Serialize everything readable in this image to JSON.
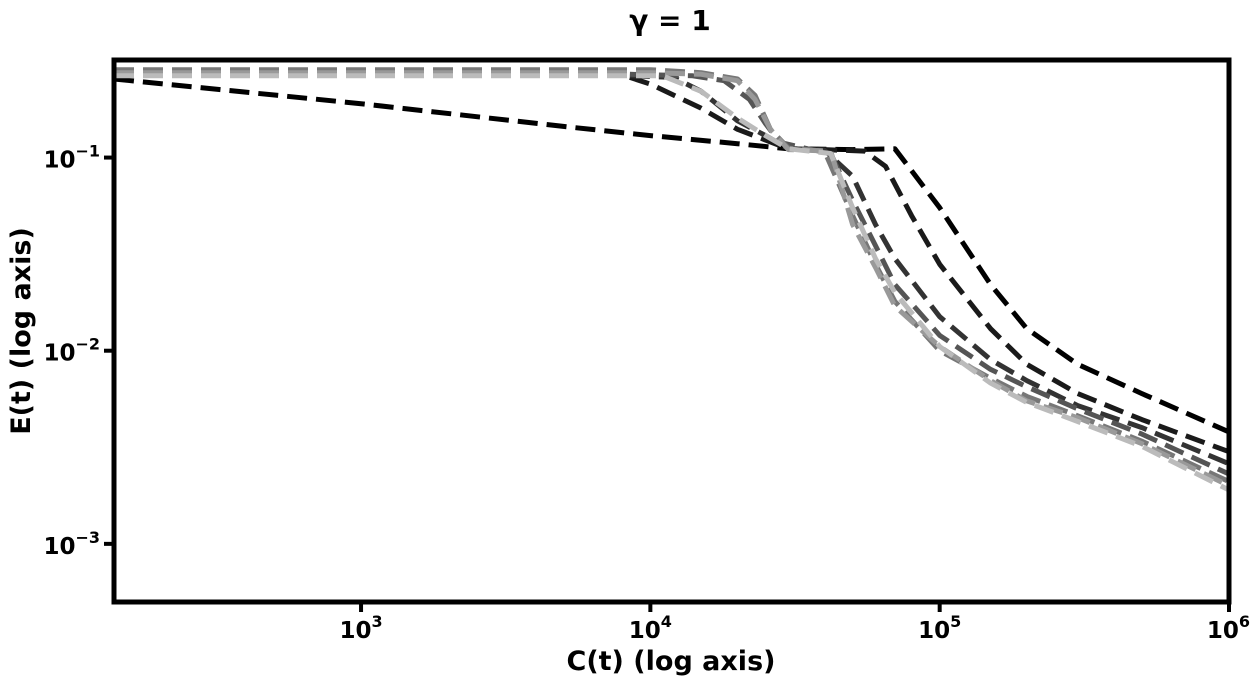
{
  "chart_data": {
    "type": "line",
    "title": "γ = 1",
    "xlabel": "C(t) (log axis)",
    "ylabel": "E(t) (log axis)",
    "xscale": "log",
    "yscale": "log",
    "xlim": [
      140,
      1000000
    ],
    "ylim": [
      0.0005,
      0.32
    ],
    "grid": false,
    "legend": "none",
    "line_style": "dashed",
    "xticks": [
      {
        "base": "10",
        "exp": "3",
        "value": 1000
      },
      {
        "base": "10",
        "exp": "4",
        "value": 10000
      },
      {
        "base": "10",
        "exp": "5",
        "value": 100000
      },
      {
        "base": "10",
        "exp": "6",
        "value": 1000000
      }
    ],
    "yticks": [
      {
        "base": "10",
        "exp": "−1",
        "value": 0.1
      },
      {
        "base": "10",
        "exp": "−2",
        "value": 0.01
      },
      {
        "base": "10",
        "exp": "−3",
        "value": 0.001
      }
    ],
    "series": [
      {
        "color": "#000000",
        "points": [
          [
            140,
            0.255
          ],
          [
            1000,
            0.19
          ],
          [
            5000,
            0.145
          ],
          [
            10000,
            0.13
          ],
          [
            20000,
            0.118
          ],
          [
            30000,
            0.111
          ],
          [
            50000,
            0.11
          ],
          [
            70000,
            0.111
          ],
          [
            100000,
            0.055
          ],
          [
            150000,
            0.022
          ],
          [
            200000,
            0.013
          ],
          [
            300000,
            0.0085
          ],
          [
            500000,
            0.006
          ],
          [
            1000000,
            0.0038
          ]
        ]
      },
      {
        "color": "#1a1a1a",
        "points": [
          [
            8500,
            0.26
          ],
          [
            10000,
            0.24
          ],
          [
            15000,
            0.18
          ],
          [
            20000,
            0.14
          ],
          [
            30000,
            0.111
          ],
          [
            40000,
            0.11
          ],
          [
            55000,
            0.108
          ],
          [
            65000,
            0.09
          ],
          [
            80000,
            0.05
          ],
          [
            100000,
            0.028
          ],
          [
            150000,
            0.013
          ],
          [
            200000,
            0.0085
          ],
          [
            300000,
            0.006
          ],
          [
            500000,
            0.0044
          ],
          [
            1000000,
            0.003
          ]
        ]
      },
      {
        "color": "#333333",
        "points": [
          [
            8500,
            0.265
          ],
          [
            12000,
            0.26
          ],
          [
            15000,
            0.22
          ],
          [
            20000,
            0.155
          ],
          [
            25000,
            0.13
          ],
          [
            30000,
            0.111
          ],
          [
            40000,
            0.109
          ],
          [
            50000,
            0.08
          ],
          [
            60000,
            0.045
          ],
          [
            70000,
            0.03
          ],
          [
            100000,
            0.015
          ],
          [
            150000,
            0.009
          ],
          [
            200000,
            0.007
          ],
          [
            300000,
            0.0052
          ],
          [
            500000,
            0.004
          ],
          [
            1000000,
            0.0026
          ]
        ]
      },
      {
        "color": "#555555",
        "points": [
          [
            8500,
            0.27
          ],
          [
            14000,
            0.265
          ],
          [
            18000,
            0.25
          ],
          [
            22000,
            0.2
          ],
          [
            25000,
            0.15
          ],
          [
            28000,
            0.12
          ],
          [
            35000,
            0.111
          ],
          [
            42000,
            0.105
          ],
          [
            50000,
            0.06
          ],
          [
            60000,
            0.035
          ],
          [
            70000,
            0.022
          ],
          [
            100000,
            0.012
          ],
          [
            150000,
            0.008
          ],
          [
            200000,
            0.0065
          ],
          [
            300000,
            0.005
          ],
          [
            500000,
            0.0037
          ],
          [
            1000000,
            0.0023
          ]
        ]
      },
      {
        "color": "#777777",
        "points": [
          [
            140,
            0.285
          ],
          [
            10000,
            0.285
          ],
          [
            15000,
            0.275
          ],
          [
            20000,
            0.255
          ],
          [
            23000,
            0.21
          ],
          [
            26000,
            0.14
          ],
          [
            30000,
            0.112
          ],
          [
            40000,
            0.108
          ],
          [
            50000,
            0.05
          ],
          [
            60000,
            0.028
          ],
          [
            70000,
            0.018
          ],
          [
            100000,
            0.01
          ],
          [
            150000,
            0.0072
          ],
          [
            200000,
            0.0058
          ],
          [
            300000,
            0.0046
          ],
          [
            500000,
            0.0034
          ],
          [
            1000000,
            0.0021
          ]
        ]
      },
      {
        "color": "#999999",
        "points": [
          [
            140,
            0.275
          ],
          [
            10000,
            0.275
          ],
          [
            15000,
            0.27
          ],
          [
            20000,
            0.25
          ],
          [
            23000,
            0.2
          ],
          [
            26000,
            0.14
          ],
          [
            30000,
            0.11
          ],
          [
            42000,
            0.108
          ],
          [
            50000,
            0.045
          ],
          [
            60000,
            0.027
          ],
          [
            70000,
            0.017
          ],
          [
            100000,
            0.0105
          ],
          [
            150000,
            0.007
          ],
          [
            200000,
            0.0055
          ],
          [
            300000,
            0.0045
          ],
          [
            500000,
            0.0033
          ],
          [
            1000000,
            0.002
          ]
        ]
      },
      {
        "color": "#bbbbbb",
        "points": [
          [
            140,
            0.265
          ],
          [
            11000,
            0.265
          ],
          [
            15000,
            0.22
          ],
          [
            20000,
            0.16
          ],
          [
            25000,
            0.13
          ],
          [
            30000,
            0.111
          ],
          [
            42000,
            0.105
          ],
          [
            50000,
            0.055
          ],
          [
            60000,
            0.03
          ],
          [
            70000,
            0.02
          ],
          [
            100000,
            0.0105
          ],
          [
            150000,
            0.0068
          ],
          [
            200000,
            0.0054
          ],
          [
            300000,
            0.0043
          ],
          [
            500000,
            0.0032
          ],
          [
            1000000,
            0.0019
          ]
        ]
      }
    ]
  }
}
